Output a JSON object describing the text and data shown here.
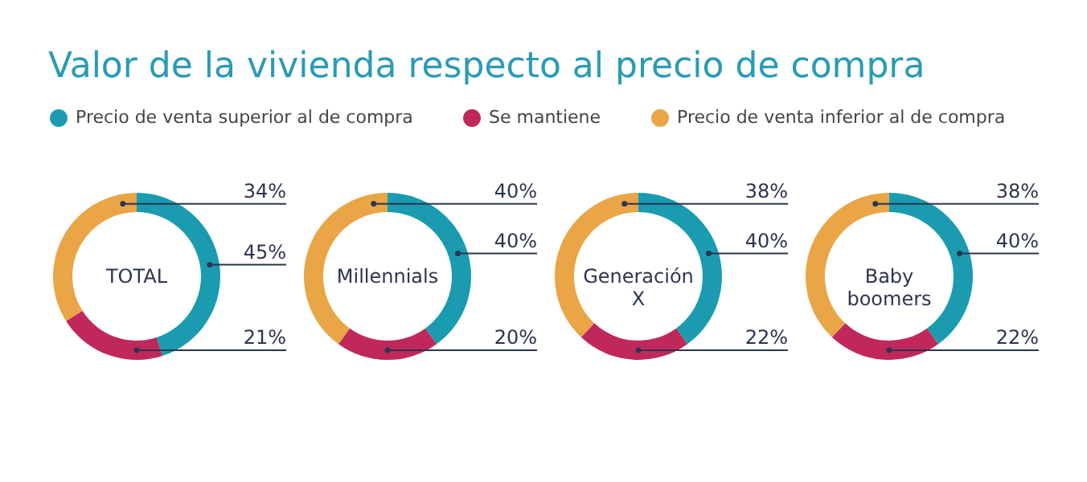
{
  "chart_data": {
    "type": "donut",
    "title": "Valor de la vivienda respecto al precio de compra",
    "legend": "top",
    "categories": [
      "Precio de venta superior al de compra",
      "Se mantiene",
      "Precio de venta inferior al de compra"
    ],
    "colors": [
      "#1a9bb0",
      "#c0285a",
      "#e9a546"
    ],
    "series": [
      {
        "name": "TOTAL",
        "values": [
          45,
          21,
          34
        ],
        "value_labels": [
          "45%",
          "21%",
          "34%"
        ]
      },
      {
        "name": "Millennials",
        "values": [
          40,
          20,
          40
        ],
        "value_labels": [
          "40%",
          "20%",
          "40%"
        ]
      },
      {
        "name": "Generación\nX",
        "values": [
          40,
          22,
          38
        ],
        "value_labels": [
          "40%",
          "22%",
          "38%"
        ]
      },
      {
        "name": "Baby\nboomers",
        "values": [
          40,
          22,
          38
        ],
        "value_labels": [
          "40%",
          "22%",
          "38%"
        ]
      }
    ]
  }
}
